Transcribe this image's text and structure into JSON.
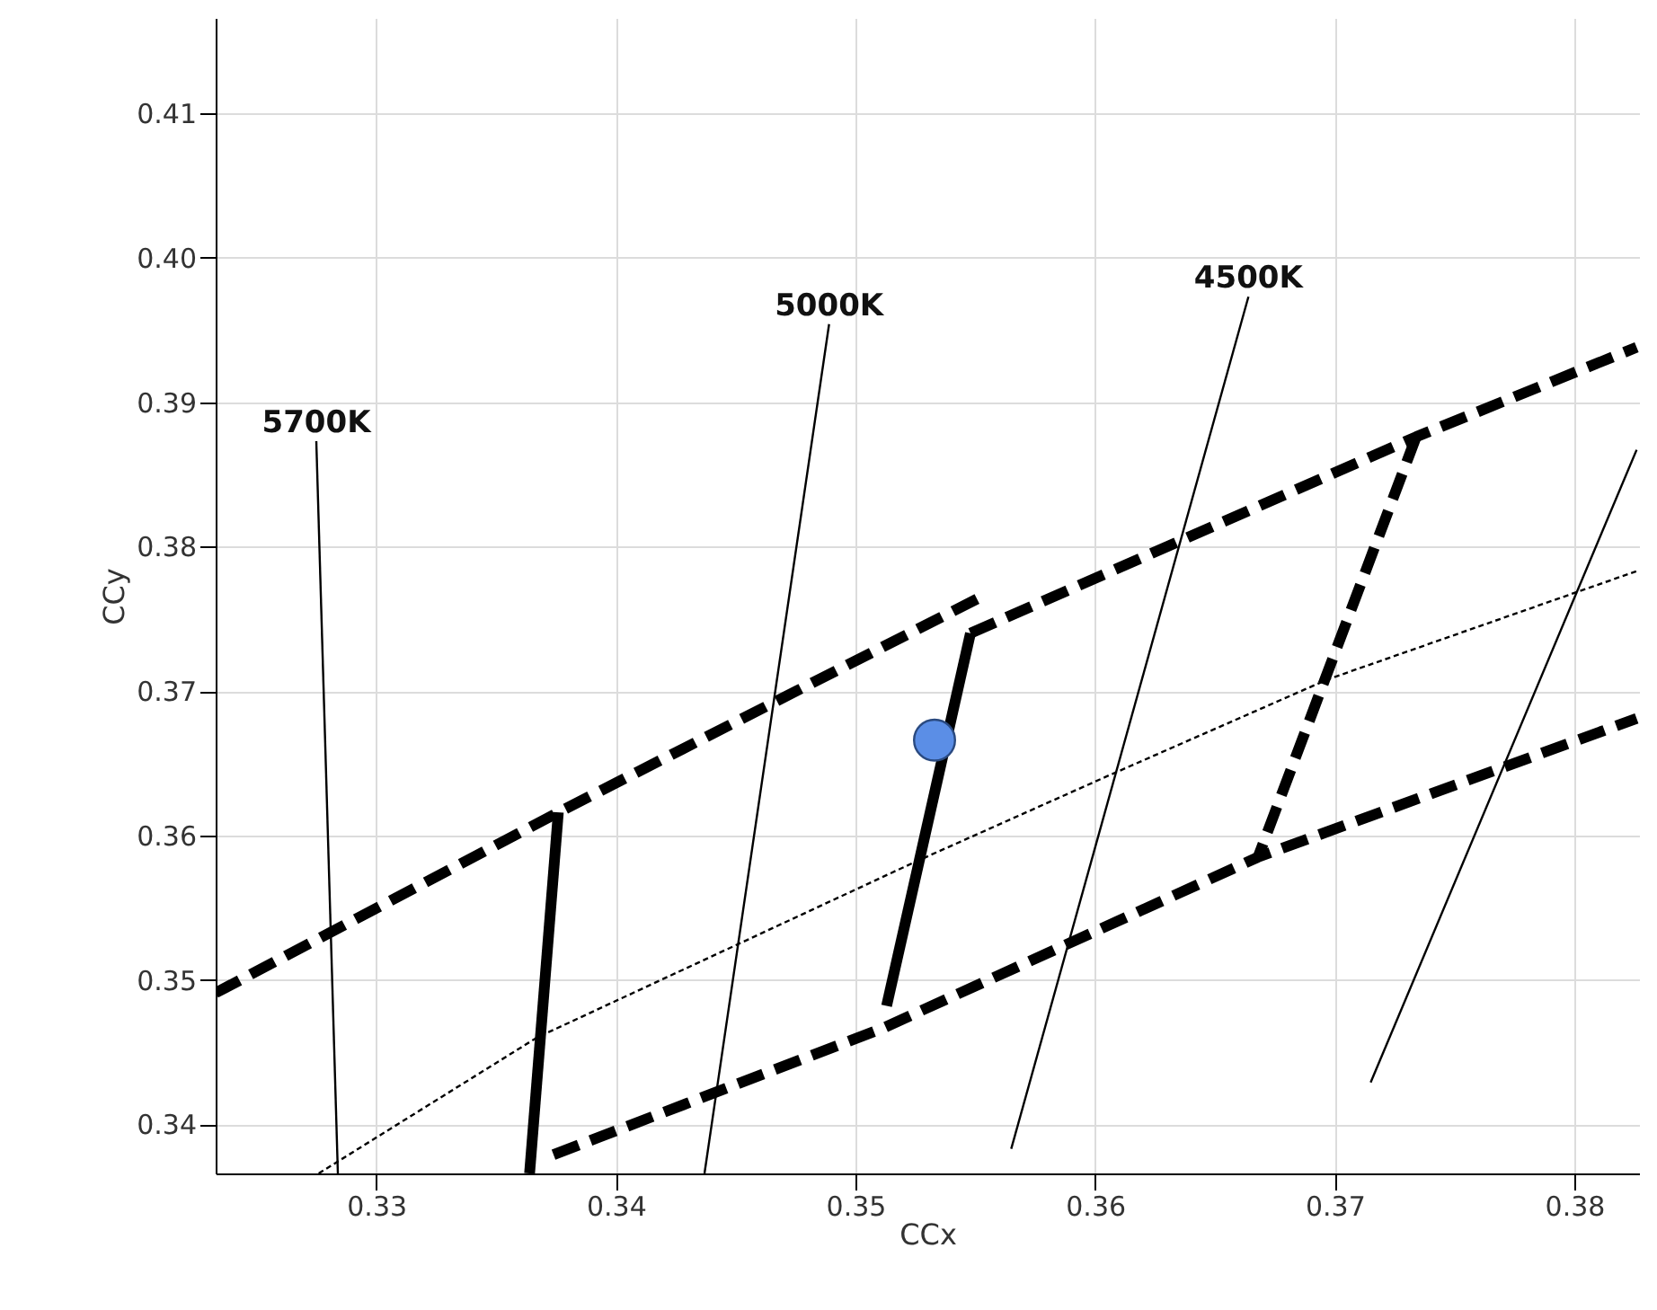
{
  "chart_data": {
    "type": "line",
    "xlabel": "CCx",
    "ylabel": "CCy",
    "xlim": [
      0.3233,
      0.3827
    ],
    "ylim": [
      0.3366,
      0.4166
    ],
    "xticks": [
      0.33,
      0.34,
      0.35,
      0.36,
      0.37,
      0.38
    ],
    "yticks": [
      0.34,
      0.35,
      0.36,
      0.37,
      0.38,
      0.39,
      {
        "value": 0.4,
        "label": "0.40"
      },
      0.41
    ],
    "grid": true,
    "series": [
      {
        "color": "#000000",
        "line_style": "dashed",
        "x": [
          0.3233,
          0.3376,
          0.3551
        ],
        "values": [
          0.3491,
          0.3616,
          0.3764
        ]
      },
      {
        "color": "#000000",
        "line_style": "dashed",
        "x": [
          0.3548,
          0.3734,
          0.3826
        ],
        "values": [
          0.374,
          0.3876,
          0.3938
        ]
      },
      {
        "color": "#000000",
        "line_style": "dashed",
        "x": [
          0.3374,
          0.3512,
          0.3668,
          0.3826
        ],
        "values": [
          0.3379,
          0.3467,
          0.3585,
          0.3681
        ]
      },
      {
        "color": "#000000",
        "line_style": "solid",
        "x": [
          0.3376,
          0.3364
        ],
        "values": [
          0.3616,
          0.3366
        ]
      },
      {
        "color": "#000000",
        "line_style": "solid",
        "x": [
          0.3548,
          0.3513
        ],
        "values": [
          0.374,
          0.3482
        ]
      },
      {
        "color": "#000000",
        "line_style": "dashed",
        "x": [
          0.3734,
          0.3668
        ],
        "values": [
          0.3876,
          0.3585
        ]
      },
      {
        "color": "#000000",
        "line_style": "solid",
        "x": [
          0.3275,
          0.3284
        ],
        "values": [
          0.3873,
          0.3366
        ]
      },
      {
        "color": "#000000",
        "line_style": "solid",
        "x": [
          0.3489,
          0.3437
        ],
        "values": [
          0.3954,
          0.3366
        ]
      },
      {
        "color": "#000000",
        "line_style": "solid",
        "x": [
          0.3664,
          0.3565
        ],
        "values": [
          0.3973,
          0.3383
        ]
      },
      {
        "color": "#000000",
        "line_style": "solid",
        "x": [
          0.3826,
          0.3715
        ],
        "values": [
          0.3867,
          0.3429
        ]
      },
      {
        "color": "#000000",
        "line_style": "dotted",
        "x": [
          0.3276,
          0.3367,
          0.3524,
          0.3605,
          0.3697,
          0.3826
        ],
        "values": [
          0.3366,
          0.346,
          0.3581,
          0.3641,
          0.3708,
          0.3783
        ]
      },
      {
        "type": "scatter",
        "marker": "circle",
        "color": "#5b8ee6",
        "x": [
          0.3533
        ],
        "values": [
          0.3666
        ]
      }
    ],
    "annotations": [
      {
        "text": "5700K",
        "x": 0.3275,
        "y": 0.3873
      },
      {
        "text": "5000K",
        "x": 0.3489,
        "y": 0.3954
      },
      {
        "text": "4500K",
        "x": 0.3664,
        "y": 0.3973
      }
    ]
  }
}
